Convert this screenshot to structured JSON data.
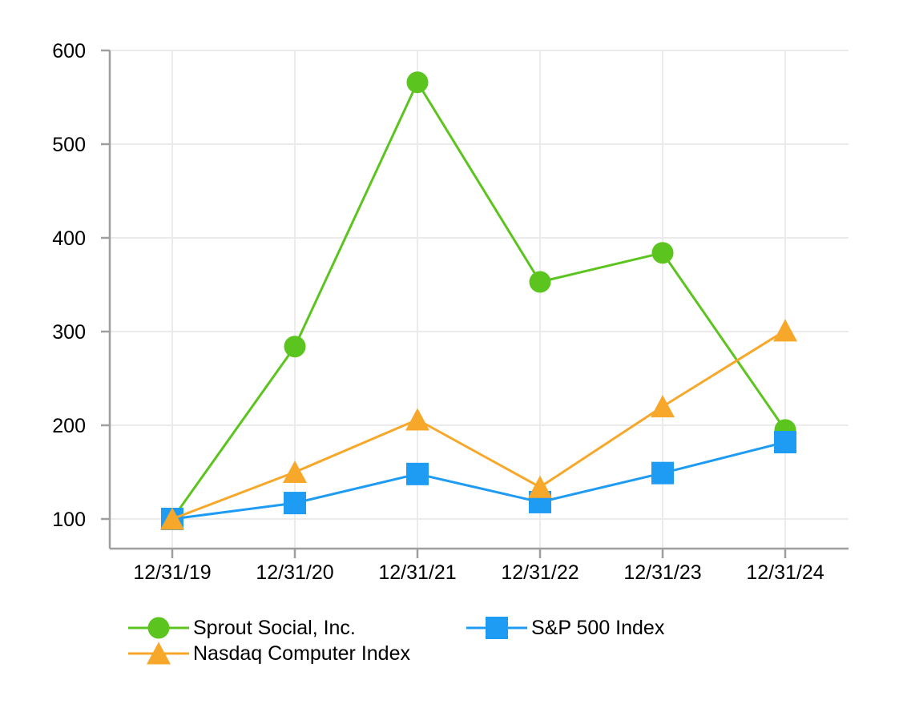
{
  "chart_data": {
    "type": "line",
    "x": [
      "12/31/19",
      "12/31/20",
      "12/31/21",
      "12/31/22",
      "12/31/23",
      "12/31/24"
    ],
    "y_ticks": [
      100,
      200,
      300,
      400,
      500,
      600
    ],
    "ylim": [
      68,
      600
    ],
    "grid": true,
    "legend_position": "bottom-left",
    "series": [
      {
        "name": "Sprout Social, Inc.",
        "marker": "circle",
        "color": "#5cc41e",
        "values": [
          100,
          284,
          566,
          353,
          384,
          195
        ]
      },
      {
        "name": "S&P 500 Index",
        "marker": "square",
        "color": "#1e9bf3",
        "values": [
          100,
          117,
          148,
          118,
          149,
          182
        ]
      },
      {
        "name": "Nasdaq Computer Index",
        "marker": "triangle",
        "color": "#f7a82a",
        "values": [
          100,
          150,
          206,
          134,
          220,
          301
        ]
      }
    ]
  },
  "colors": {
    "grid": "#ebebeb",
    "axis": "#9e9e9e",
    "text": "#000000",
    "background": "#ffffff"
  }
}
